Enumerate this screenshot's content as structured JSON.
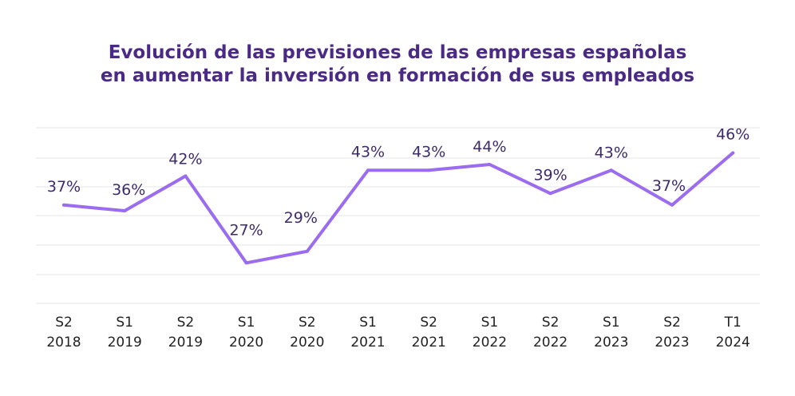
{
  "colors": {
    "line": "#9b6bf0",
    "title": "#4b2a86",
    "label": "#3d2b6b",
    "grid": "#e6e6ea"
  },
  "chart_data": {
    "type": "line",
    "title": [
      "Evolución de las previsiones de las empresas españolas",
      "en aumentar la inversión en formación de sus empleados"
    ],
    "categories": [
      [
        "S2",
        "2018"
      ],
      [
        "S1",
        "2019"
      ],
      [
        "S2",
        "2019"
      ],
      [
        "S1",
        "2020"
      ],
      [
        "S2",
        "2020"
      ],
      [
        "S1",
        "2021"
      ],
      [
        "S2",
        "2021"
      ],
      [
        "S1",
        "2022"
      ],
      [
        "S2",
        "2022"
      ],
      [
        "S1",
        "2023"
      ],
      [
        "S2",
        "2023"
      ],
      [
        "T1",
        "2024"
      ]
    ],
    "values": [
      37,
      36,
      42,
      27,
      29,
      43,
      43,
      44,
      39,
      43,
      37,
      46
    ],
    "labels": [
      "37%",
      "36%",
      "42%",
      "27%",
      "29%",
      "43%",
      "43%",
      "44%",
      "39%",
      "43%",
      "37%",
      "46%"
    ],
    "xlabel": "",
    "ylabel": "",
    "ylim": [
      20,
      50
    ],
    "grid": true,
    "legend": "none"
  }
}
